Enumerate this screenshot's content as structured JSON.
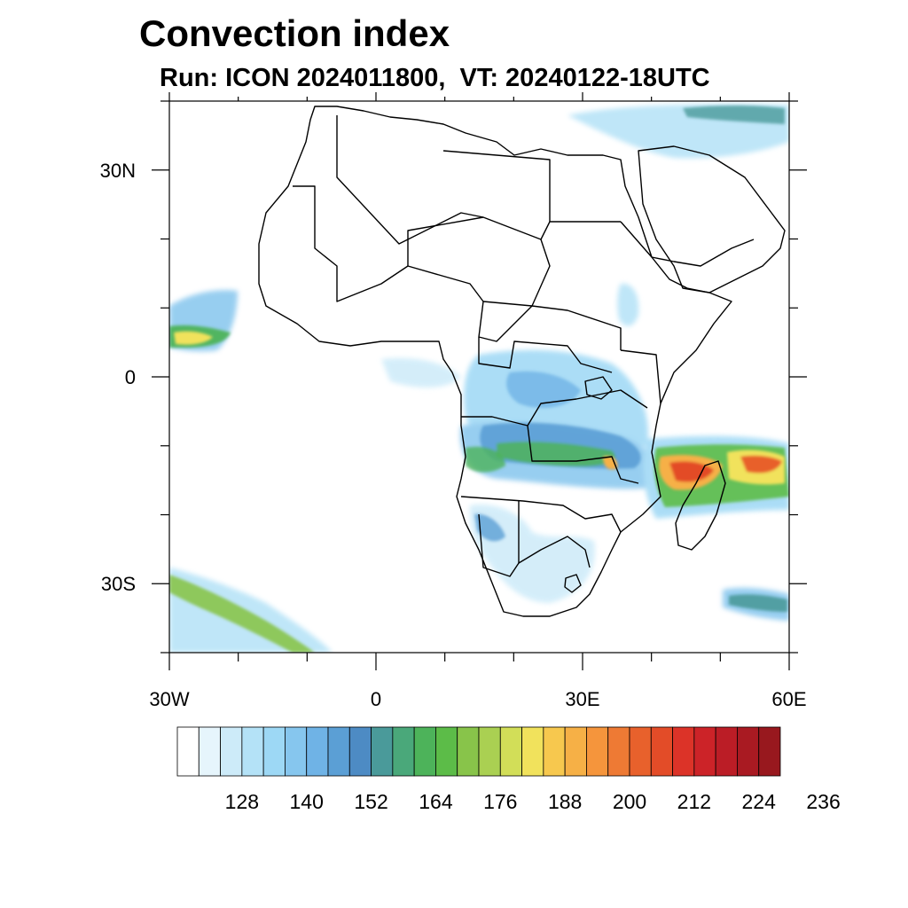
{
  "title": "Convection index",
  "subtitle": "Run: ICON 2024011800,  VT: 20240122-18UTC",
  "axes": {
    "lon_labels": [
      "30W",
      "0",
      "30E",
      "60E"
    ],
    "lat_labels": [
      "30N",
      "0",
      "30S"
    ],
    "lon_range": [
      -30,
      60
    ],
    "lat_range": [
      -40,
      40
    ]
  },
  "colorbar": {
    "colors": [
      "#ffffff",
      "#e6f5fc",
      "#cdebf9",
      "#b4e2f7",
      "#9dd8f5",
      "#86c6ee",
      "#6fb3e6",
      "#5b9fd5",
      "#4d8bc4",
      "#4a9a9a",
      "#4aa87a",
      "#4db35a",
      "#5cbc48",
      "#88c44a",
      "#aad052",
      "#d2de58",
      "#f1e25c",
      "#f7c84e",
      "#f6b046",
      "#f5953c",
      "#ee7a34",
      "#e8612c",
      "#e34c28",
      "#dc3328",
      "#cc2328",
      "#bb1d26",
      "#a91a22",
      "#98181e"
    ],
    "tick_labels": [
      "128",
      "140",
      "152",
      "164",
      "176",
      "188",
      "200",
      "212",
      "224",
      "236"
    ]
  }
}
